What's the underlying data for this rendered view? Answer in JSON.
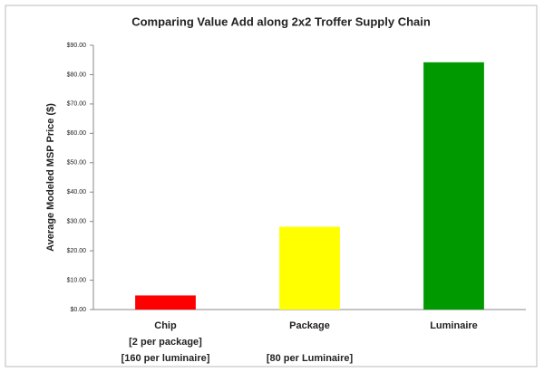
{
  "chart_data": {
    "type": "bar",
    "title": "Comparing Value Add along 2x2 Troffer Supply Chain",
    "y_label": "Average Modeled MSP Price ($)",
    "categories": [
      [
        "Chip",
        "[2 per package]",
        "[160 per luminaire]"
      ],
      [
        "Package",
        "[80 per Luminaire]"
      ],
      [
        "Luminaire"
      ]
    ],
    "values": [
      4.8,
      28.2,
      84.2
    ],
    "colors": [
      "#ff0000",
      "#ffff00",
      "#009900"
    ],
    "ylim": [
      0,
      90
    ],
    "yticks": [
      {
        "value": 0,
        "label": "$0.00"
      },
      {
        "value": 10,
        "label": "$10.00"
      },
      {
        "value": 20,
        "label": "$20.00"
      },
      {
        "value": 30,
        "label": "$30.00"
      },
      {
        "value": 40,
        "label": "$40.00"
      },
      {
        "value": 50,
        "label": "$50.00"
      },
      {
        "value": 60,
        "label": "$60.00"
      },
      {
        "value": 70,
        "label": "$70.00"
      },
      {
        "value": 80,
        "label": "$80.00"
      },
      {
        "value": 90,
        "label": "$90.00"
      }
    ],
    "grid": false
  }
}
